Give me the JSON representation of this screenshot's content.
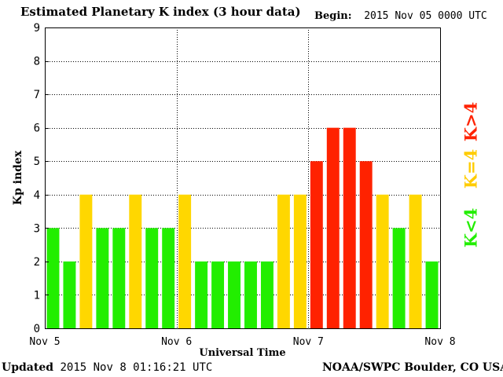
{
  "header": {
    "title": "Estimated Planetary K index (3 hour data)",
    "begin_label": "Begin:",
    "begin_value": "2015 Nov 05 0000 UTC"
  },
  "footer": {
    "updated_label": "Updated",
    "updated_value": "2015 Nov  8 01:16:21 UTC",
    "credit": "NOAA/SWPC Boulder, CO USA"
  },
  "legend": {
    "greater": "K>4",
    "equal": "K=4",
    "less": "K<4"
  },
  "colors": {
    "green": "#22ee00",
    "yellow": "#ffd700",
    "red": "#ff2200",
    "legend_green": "#22ee00",
    "legend_yellow": "#ffcc00",
    "legend_red": "#ff2200"
  },
  "chart_data": {
    "type": "bar",
    "title": "Estimated Planetary K index (3 hour data)",
    "xlabel": "Universal Time",
    "ylabel": "Kp index",
    "ylim": [
      0,
      9
    ],
    "yticks": [
      "0",
      "1",
      "2",
      "3",
      "4",
      "5",
      "6",
      "7",
      "8",
      "9"
    ],
    "x_day_labels": [
      "Nov 5",
      "Nov 6",
      "Nov 7",
      "Nov 8"
    ],
    "values": [
      3,
      2,
      4,
      3,
      3,
      4,
      3,
      3,
      4,
      2,
      2,
      2,
      2,
      2,
      4,
      4,
      5,
      6,
      6,
      5,
      4,
      3,
      4,
      2
    ],
    "grid": true
  }
}
